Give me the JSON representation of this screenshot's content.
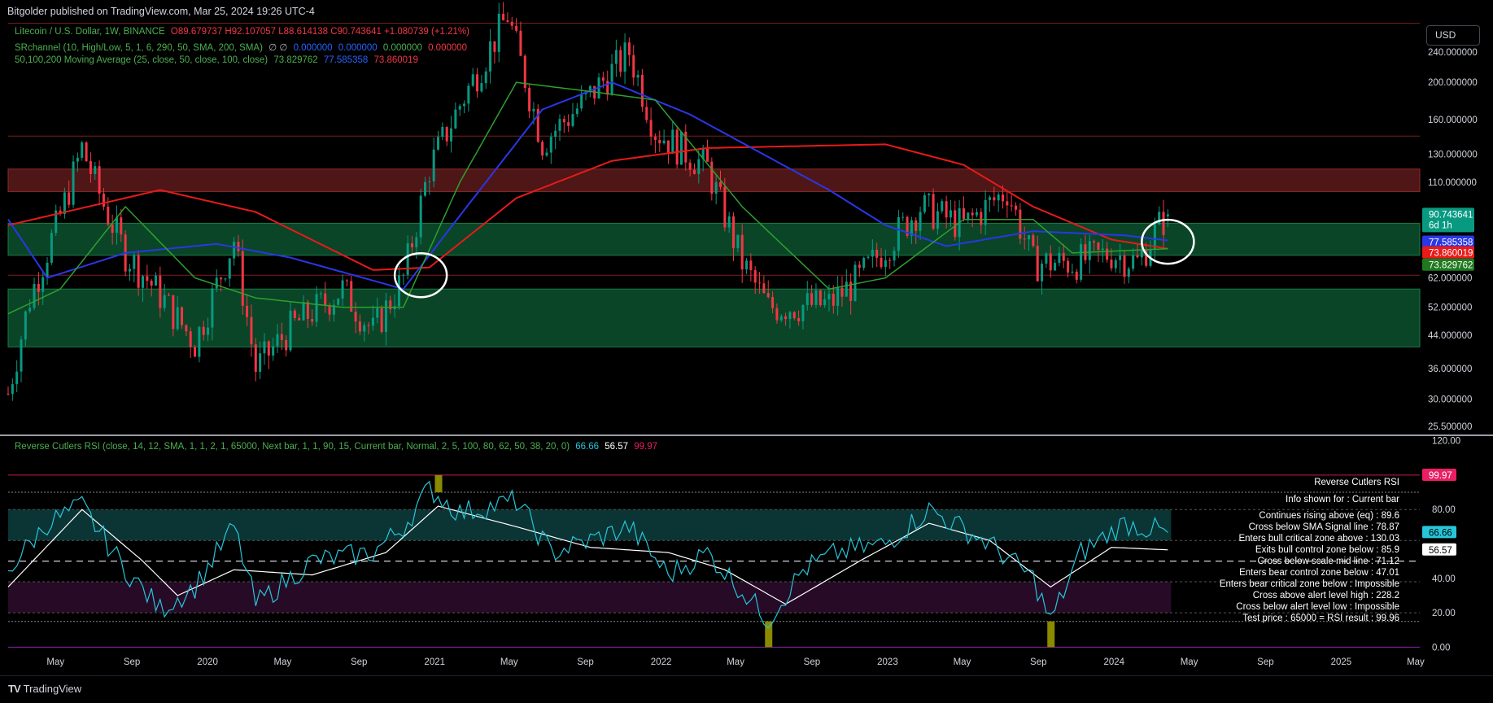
{
  "topbar": {
    "text": "Bitgolder published on TradingView.com, Mar 25, 2024 19:26 UTC-4"
  },
  "currency_button": "USD",
  "legend_main": {
    "symbol": "Litecoin / U.S. Dollar, 1W, BINANCE",
    "ohlc": "O89.679737  H92.107057  L88.614138  C90.743641  +1.080739 (+1.21%)"
  },
  "legend_sr": {
    "name": "SRchannel (10, High/Low, 5, 1, 6, 290, 50, SMA, 200, SMA)",
    "symbols": "∅  ∅",
    "v1": "0.000000",
    "v2": "0.000000",
    "v3": "0.000000",
    "v4": "0.000000"
  },
  "legend_ma": {
    "name": "50,100,200 Moving Average (25, close, 50, close, 100, close)",
    "v1": "73.829762",
    "v2": "77.585358",
    "v3": "73.860019"
  },
  "legend_rsi": {
    "name": "Reverse Cutlers RSI (close, 14, 12, SMA, 1, 1, 2, 1, 65000, Next bar, 1, 1, 90, 15, Current bar, Normal, 2, 5, 100, 80, 62, 50, 38, 20, 0)",
    "v1": "66.66",
    "v2": "56.57",
    "v3": "99.97"
  },
  "price_axis": {
    "ticks": [
      "240.000000",
      "200.000000",
      "160.000000",
      "130.000000",
      "110.000000",
      "62.000000",
      "52.000000",
      "44.000000",
      "36.000000",
      "30.000000",
      "25.500000"
    ]
  },
  "price_badges": {
    "last_price": "90.743641",
    "countdown": "6d 1h",
    "ma100": "77.585358",
    "ma200": "73.860019",
    "ma50": "73.829762"
  },
  "rsi_axis": {
    "ticks": [
      "120.00",
      "80.00",
      "40.00",
      "20.00",
      "0.00"
    ]
  },
  "rsi_badges": {
    "rsi": "66.66",
    "signal": "56.57",
    "top": "99.97"
  },
  "rsi_labels": {
    "title": "Reverse Cutlers RSI",
    "info_shown": "Info shown for : Current bar"
  },
  "rsi_info": [
    "Continues rising above (eq) : 89.6",
    "Cross below SMA Signal line : 78.87",
    "Enters bull critical zone above : 130.03",
    "Exits bull control zone below : 85.9",
    "Cross below scale mid line : 71.12",
    "Enters bear control zone below : 47.01",
    "Enters bear critical zone below : Impossible",
    "Cross above alert level high : 228.2",
    "Cross below alert level low : Impossible",
    "Test price : 65000 = RSI result : 99.96"
  ],
  "time_axis": {
    "labels": [
      "May",
      "Sep",
      "2020",
      "May",
      "Sep",
      "2021",
      "May",
      "Sep",
      "2022",
      "May",
      "Sep",
      "2023",
      "May",
      "Sep",
      "2024",
      "May",
      "Sep",
      "2025",
      "May"
    ]
  },
  "footer": {
    "brand": "TradingView"
  },
  "colors": {
    "up": "#089981",
    "down": "#f23645",
    "ma50": "#2ea02e",
    "ma100": "#2a37e6",
    "ma200": "#e81a1a",
    "rsi": "#26c6da",
    "signal": "#ffffff",
    "zone_green": "#0b4d2b",
    "zone_red": "#5c1a1a"
  },
  "chart_data": {
    "type": "candlestick",
    "price_scale": "log",
    "ylim": [
      23,
      290
    ],
    "x_range": [
      "2019-02-11",
      "2025-05-05"
    ],
    "zones": [
      {
        "kind": "resistance",
        "low": 104,
        "high": 119
      },
      {
        "kind": "support",
        "low": 71,
        "high": 86
      },
      {
        "kind": "support",
        "low": 41,
        "high": 58
      }
    ],
    "horizontal_levels": [
      285,
      145,
      63
    ],
    "close_path": [
      [
        "2019-02-11",
        31
      ],
      [
        "2019-03-18",
        55
      ],
      [
        "2019-05-06",
        90
      ],
      [
        "2019-06-10",
        135
      ],
      [
        "2019-07-15",
        96
      ],
      [
        "2019-08-19",
        72
      ],
      [
        "2019-10-14",
        56
      ],
      [
        "2019-12-09",
        42
      ],
      [
        "2020-02-10",
        78
      ],
      [
        "2020-03-16",
        36
      ],
      [
        "2020-05-11",
        46
      ],
      [
        "2020-08-03",
        58
      ],
      [
        "2020-09-21",
        45
      ],
      [
        "2020-11-09",
        62
      ],
      [
        "2020-12-21",
        120
      ],
      [
        "2021-02-08",
        175
      ],
      [
        "2021-04-26",
        300
      ],
      [
        "2021-06-21",
        140
      ],
      [
        "2021-08-30",
        180
      ],
      [
        "2021-11-08",
        240
      ],
      [
        "2021-12-20",
        150
      ],
      [
        "2022-03-14",
        120
      ],
      [
        "2022-05-09",
        68
      ],
      [
        "2022-06-20",
        52
      ],
      [
        "2022-09-26",
        53
      ],
      [
        "2022-11-14",
        62
      ],
      [
        "2022-12-26",
        75
      ],
      [
        "2023-02-20",
        95
      ],
      [
        "2023-05-01",
        85
      ],
      [
        "2023-07-10",
        105
      ],
      [
        "2023-08-21",
        68
      ],
      [
        "2023-10-23",
        68
      ],
      [
        "2023-12-25",
        72
      ],
      [
        "2024-02-05",
        68
      ],
      [
        "2024-03-11",
        85
      ],
      [
        "2024-03-25",
        90.74
      ]
    ],
    "last_candle": {
      "open": 89.679737,
      "high": 92.107057,
      "low": 88.614138,
      "close": 90.743641
    },
    "moving_averages": [
      {
        "length": 25,
        "last": 73.829762
      },
      {
        "length": 50,
        "last": 77.585358
      },
      {
        "length": 100,
        "last": 73.860019
      }
    ],
    "ma_paths": {
      "ma50": [
        [
          "2019-02-11",
          50
        ],
        [
          "2019-05-06",
          58
        ],
        [
          "2019-08-19",
          95
        ],
        [
          "2019-12-09",
          62
        ],
        [
          "2020-03-16",
          55
        ],
        [
          "2020-08-03",
          52
        ],
        [
          "2020-11-09",
          52
        ],
        [
          "2021-02-08",
          110
        ],
        [
          "2021-05-10",
          200
        ],
        [
          "2021-08-30",
          190
        ],
        [
          "2021-12-20",
          180
        ],
        [
          "2022-05-09",
          95
        ],
        [
          "2022-09-26",
          58
        ],
        [
          "2022-12-26",
          62
        ],
        [
          "2023-05-01",
          88
        ],
        [
          "2023-08-21",
          88
        ],
        [
          "2023-10-23",
          72
        ],
        [
          "2024-01-15",
          73
        ],
        [
          "2024-03-25",
          73.83
        ]
      ],
      "ma100": [
        [
          "2019-02-11",
          88
        ],
        [
          "2019-04-15",
          62
        ],
        [
          "2019-08-19",
          72
        ],
        [
          "2020-01-13",
          76
        ],
        [
          "2020-05-11",
          70
        ],
        [
          "2020-11-09",
          58
        ],
        [
          "2021-02-08",
          90
        ],
        [
          "2021-06-21",
          170
        ],
        [
          "2021-10-11",
          200
        ],
        [
          "2022-02-14",
          165
        ],
        [
          "2022-09-26",
          105
        ],
        [
          "2022-12-26",
          85
        ],
        [
          "2023-04-03",
          75
        ],
        [
          "2023-08-21",
          82
        ],
        [
          "2024-01-15",
          80
        ],
        [
          "2024-03-25",
          77.59
        ]
      ],
      "ma200": [
        [
          "2019-02-11",
          85
        ],
        [
          "2019-10-14",
          105
        ],
        [
          "2020-03-16",
          92
        ],
        [
          "2020-09-21",
          65
        ],
        [
          "2020-12-21",
          66
        ],
        [
          "2021-05-10",
          100
        ],
        [
          "2021-10-11",
          125
        ],
        [
          "2022-03-14",
          135
        ],
        [
          "2022-12-26",
          138
        ],
        [
          "2023-05-01",
          122
        ],
        [
          "2023-08-21",
          95
        ],
        [
          "2023-12-25",
          78
        ],
        [
          "2024-03-25",
          73.86
        ]
      ]
    },
    "markers": [
      {
        "type": "circle",
        "x": "2020-12-07",
        "y": 63
      },
      {
        "type": "circle",
        "x": "2024-03-25",
        "y": 77
      }
    ],
    "rsi_panel": {
      "ylim": [
        -5,
        125
      ],
      "reference_lines": [
        100,
        90,
        80,
        62,
        50,
        38,
        20,
        15,
        0
      ],
      "zones": [
        {
          "low": 62,
          "high": 80
        },
        {
          "low": 20,
          "high": 38
        }
      ],
      "rsi_path": [
        [
          "2019-02-11",
          45
        ],
        [
          "2019-04-15",
          72
        ],
        [
          "2019-06-10",
          82
        ],
        [
          "2019-08-19",
          45
        ],
        [
          "2019-10-14",
          22
        ],
        [
          "2019-12-09",
          35
        ],
        [
          "2020-02-10",
          70
        ],
        [
          "2020-03-16",
          25
        ],
        [
          "2020-06-15",
          50
        ],
        [
          "2020-09-21",
          55
        ],
        [
          "2020-11-09",
          70
        ],
        [
          "2020-12-21",
          92
        ],
        [
          "2021-02-08",
          78
        ],
        [
          "2021-05-10",
          85
        ],
        [
          "2021-07-05",
          55
        ],
        [
          "2021-09-06",
          62
        ],
        [
          "2021-11-08",
          70
        ],
        [
          "2022-01-10",
          42
        ],
        [
          "2022-03-14",
          55
        ],
        [
          "2022-06-20",
          16
        ],
        [
          "2022-08-15",
          45
        ],
        [
          "2022-10-10",
          55
        ],
        [
          "2022-12-26",
          60
        ],
        [
          "2023-03-06",
          80
        ],
        [
          "2023-06-12",
          60
        ],
        [
          "2023-08-21",
          40
        ],
        [
          "2023-09-18",
          15
        ],
        [
          "2023-11-06",
          55
        ],
        [
          "2024-01-15",
          72
        ],
        [
          "2024-03-25",
          66.66
        ]
      ],
      "signal_path": [
        [
          "2019-02-11",
          35
        ],
        [
          "2019-06-10",
          80
        ],
        [
          "2019-09-16",
          50
        ],
        [
          "2019-11-11",
          30
        ],
        [
          "2020-02-10",
          45
        ],
        [
          "2020-06-15",
          42
        ],
        [
          "2020-10-12",
          55
        ],
        [
          "2021-01-04",
          82
        ],
        [
          "2021-05-10",
          70
        ],
        [
          "2021-09-06",
          58
        ],
        [
          "2022-01-10",
          55
        ],
        [
          "2022-04-11",
          45
        ],
        [
          "2022-07-18",
          25
        ],
        [
          "2022-11-14",
          50
        ],
        [
          "2023-03-06",
          72
        ],
        [
          "2023-06-12",
          62
        ],
        [
          "2023-09-18",
          35
        ],
        [
          "2023-12-25",
          58
        ],
        [
          "2024-03-25",
          56.57
        ]
      ],
      "current_rsi": 66.66,
      "current_signal": 56.57,
      "upper_value": 99.97,
      "highlight_bars": [
        {
          "x": "2021-01-04",
          "low": 90,
          "high": 100
        },
        {
          "x": "2022-06-20",
          "low": 0,
          "high": 15
        },
        {
          "x": "2023-09-18",
          "low": 0,
          "high": 15
        }
      ]
    }
  }
}
